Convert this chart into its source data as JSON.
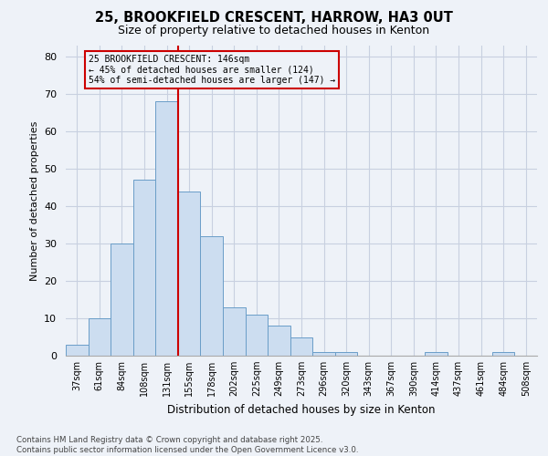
{
  "title1": "25, BROOKFIELD CRESCENT, HARROW, HA3 0UT",
  "title2": "Size of property relative to detached houses in Kenton",
  "xlabel": "Distribution of detached houses by size in Kenton",
  "ylabel": "Number of detached properties",
  "bar_labels": [
    "37sqm",
    "61sqm",
    "84sqm",
    "108sqm",
    "131sqm",
    "155sqm",
    "178sqm",
    "202sqm",
    "225sqm",
    "249sqm",
    "273sqm",
    "296sqm",
    "320sqm",
    "343sqm",
    "367sqm",
    "390sqm",
    "414sqm",
    "437sqm",
    "461sqm",
    "484sqm",
    "508sqm"
  ],
  "bar_values": [
    3,
    10,
    30,
    47,
    68,
    44,
    32,
    13,
    11,
    8,
    5,
    1,
    1,
    0,
    0,
    0,
    1,
    0,
    0,
    1,
    0
  ],
  "bar_color": "#ccddf0",
  "bar_edge_color": "#6a9dc8",
  "vline_color": "#cc0000",
  "annotation_text": "25 BROOKFIELD CRESCENT: 146sqm\n← 45% of detached houses are smaller (124)\n54% of semi-detached houses are larger (147) →",
  "yticks": [
    0,
    10,
    20,
    30,
    40,
    50,
    60,
    70,
    80
  ],
  "ylim": [
    0,
    83
  ],
  "footer": "Contains HM Land Registry data © Crown copyright and database right 2025.\nContains public sector information licensed under the Open Government Licence v3.0.",
  "bg_color": "#eef2f8",
  "grid_color": "#c8d0e0"
}
